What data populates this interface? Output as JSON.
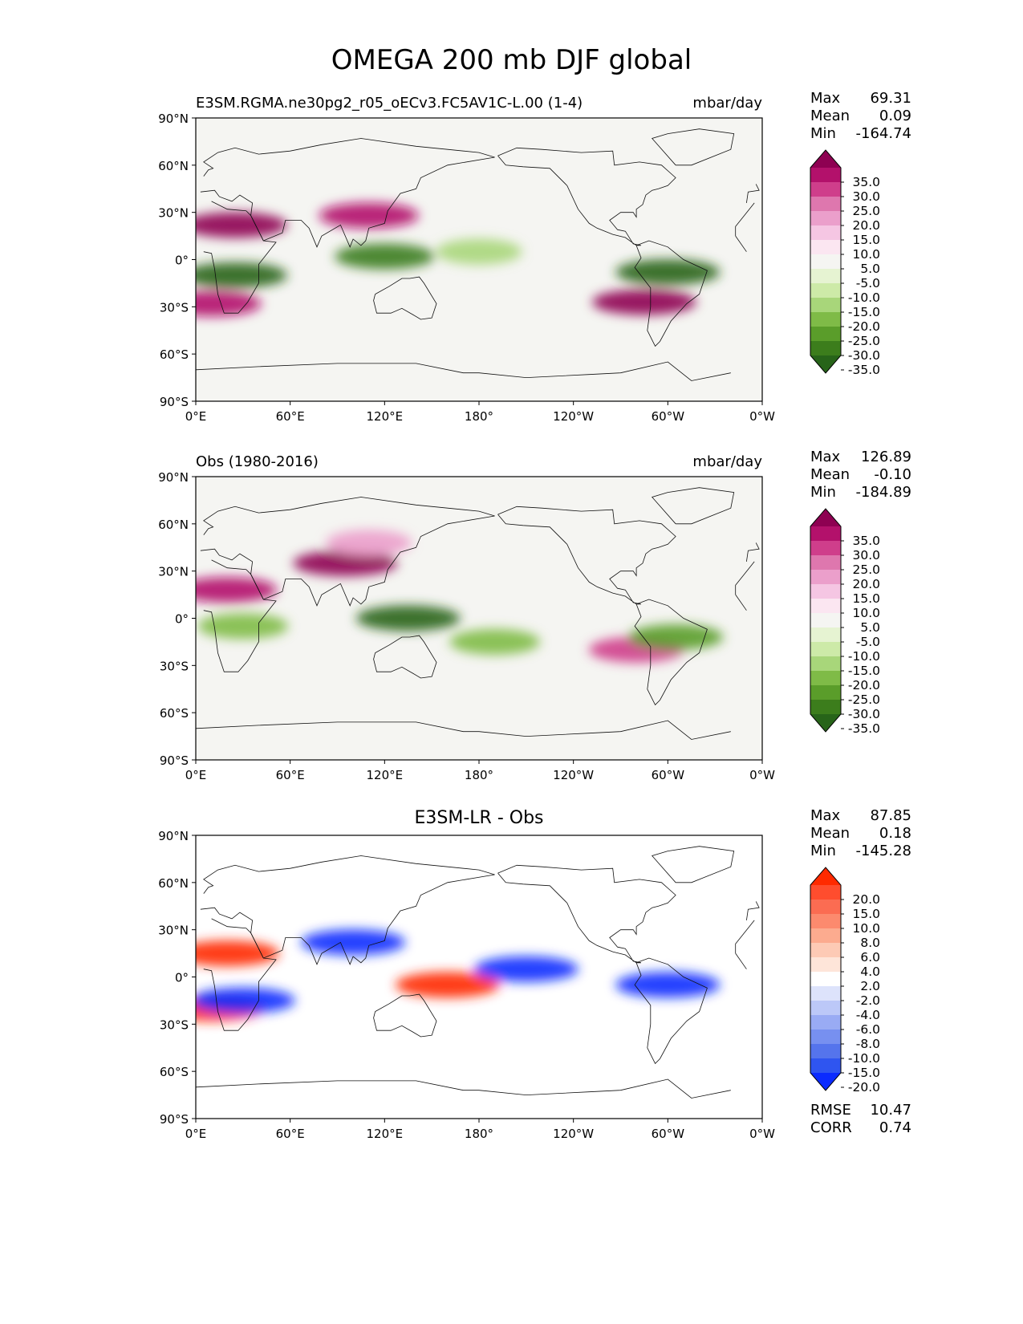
{
  "title": "OMEGA 200 mb DJF global",
  "map_axes": {
    "lat_ticks": [
      "90°N",
      "60°N",
      "30°N",
      "0°",
      "30°S",
      "60°S",
      "90°S"
    ],
    "lon_ticks": [
      "0°E",
      "60°E",
      "120°E",
      "180°",
      "120°W",
      "60°W",
      "0°W"
    ]
  },
  "panels": [
    {
      "id": "test",
      "title_left": "E3SM.RGMA.ne30pg2_r05_oECv3.FC5AV1C-L.00 (1-4)",
      "title_center": "",
      "units": "mbar/day",
      "stats": [
        {
          "label": "Max",
          "value": "69.31"
        },
        {
          "label": "Mean",
          "value": "0.09"
        },
        {
          "label": "Min",
          "value": "-164.74"
        }
      ],
      "colorbar": {
        "levels": [
          "35.0",
          "30.0",
          "25.0",
          "20.0",
          "15.0",
          "10.0",
          "5.0",
          "-5.0",
          "-10.0",
          "-15.0",
          "-20.0",
          "-25.0",
          "-30.0",
          "-35.0"
        ],
        "colors": [
          "#8e0152",
          "#b3116b",
          "#cf3e8b",
          "#de77ae",
          "#eb9fcb",
          "#f5c6e3",
          "#fbe6f1",
          "#f5f5f2",
          "#e6f3d2",
          "#cdeaa8",
          "#a8d67a",
          "#7fbb47",
          "#5a9d2a",
          "#3c7d1c",
          "#276419"
        ]
      }
    },
    {
      "id": "obs",
      "title_left": "Obs (1980-2016)",
      "title_center": "",
      "units": "mbar/day",
      "stats": [
        {
          "label": "Max",
          "value": "126.89"
        },
        {
          "label": "Mean",
          "value": "-0.10"
        },
        {
          "label": "Min",
          "value": "-184.89"
        }
      ],
      "colorbar": {
        "levels": [
          "35.0",
          "30.0",
          "25.0",
          "20.0",
          "15.0",
          "10.0",
          "5.0",
          "-5.0",
          "-10.0",
          "-15.0",
          "-20.0",
          "-25.0",
          "-30.0",
          "-35.0"
        ],
        "colors": [
          "#8e0152",
          "#b3116b",
          "#cf3e8b",
          "#de77ae",
          "#eb9fcb",
          "#f5c6e3",
          "#fbe6f1",
          "#f5f5f2",
          "#e6f3d2",
          "#cdeaa8",
          "#a8d67a",
          "#7fbb47",
          "#5a9d2a",
          "#3c7d1c",
          "#276419"
        ]
      }
    },
    {
      "id": "diff",
      "title_left": "",
      "title_center": "E3SM-LR - Obs",
      "units": "",
      "stats": [
        {
          "label": "Max",
          "value": "87.85"
        },
        {
          "label": "Mean",
          "value": "0.18"
        },
        {
          "label": "Min",
          "value": "-145.28"
        }
      ],
      "rmse": {
        "label": "RMSE",
        "value": "10.47"
      },
      "corr": {
        "label": "CORR",
        "value": "0.74"
      },
      "colorbar": {
        "levels": [
          "20.0",
          "15.0",
          "10.0",
          "8.0",
          "6.0",
          "4.0",
          "2.0",
          "-2.0",
          "-4.0",
          "-6.0",
          "-8.0",
          "-10.0",
          "-15.0",
          "-20.0"
        ],
        "colors": [
          "#ff2a00",
          "#ff4d2e",
          "#fb6c52",
          "#fc8a6e",
          "#fcab8f",
          "#fdcab5",
          "#fee5d9",
          "#ffffff",
          "#dde3fb",
          "#bcc8f8",
          "#99abf4",
          "#7790f0",
          "#5574ec",
          "#2f55f0",
          "#0b2bff"
        ]
      }
    }
  ],
  "chart_data": [
    {
      "type": "heatmap",
      "title": "E3SM.RGMA.ne30pg2_r05_oECv3.FC5AV1C-L.00 (1-4)",
      "units": "mbar/day",
      "x_range": [
        0,
        360
      ],
      "y_range": [
        -90,
        90
      ],
      "features": [
        {
          "lon": 25,
          "lat": 22,
          "value": 35
        },
        {
          "lon": 110,
          "lat": 28,
          "value": 30
        },
        {
          "lon": 10,
          "lat": -28,
          "value": 30
        },
        {
          "lon": 285,
          "lat": -27,
          "value": 35
        },
        {
          "lon": 25,
          "lat": -10,
          "value": -35
        },
        {
          "lon": 120,
          "lat": 2,
          "value": -30
        },
        {
          "lon": 300,
          "lat": -8,
          "value": -35
        },
        {
          "lon": 180,
          "lat": 5,
          "value": -15
        }
      ]
    },
    {
      "type": "heatmap",
      "title": "Obs (1980-2016)",
      "units": "mbar/day",
      "x_range": [
        0,
        360
      ],
      "y_range": [
        -90,
        90
      ],
      "features": [
        {
          "lon": 20,
          "lat": 18,
          "value": 30
        },
        {
          "lon": 95,
          "lat": 35,
          "value": 35
        },
        {
          "lon": 110,
          "lat": 48,
          "value": 15
        },
        {
          "lon": 280,
          "lat": -20,
          "value": 25
        },
        {
          "lon": 30,
          "lat": -5,
          "value": -20
        },
        {
          "lon": 135,
          "lat": 0,
          "value": -35
        },
        {
          "lon": 190,
          "lat": -15,
          "value": -20
        },
        {
          "lon": 305,
          "lat": -12,
          "value": -25
        }
      ]
    },
    {
      "type": "heatmap",
      "title": "E3SM-LR - Obs",
      "x_range": [
        0,
        360
      ],
      "y_range": [
        -90,
        90
      ],
      "features": [
        {
          "lon": 20,
          "lat": 15,
          "value": 20
        },
        {
          "lon": 10,
          "lat": -20,
          "value": 20
        },
        {
          "lon": 160,
          "lat": -5,
          "value": 20
        },
        {
          "lon": 30,
          "lat": -15,
          "value": -20
        },
        {
          "lon": 100,
          "lat": 22,
          "value": -20
        },
        {
          "lon": 210,
          "lat": 5,
          "value": -20
        },
        {
          "lon": 300,
          "lat": -5,
          "value": -20
        }
      ]
    }
  ]
}
